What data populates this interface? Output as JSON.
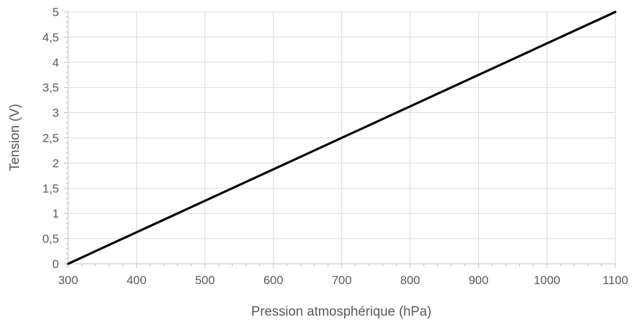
{
  "chart_data": {
    "type": "line",
    "title": "",
    "xlabel": "Pression atmosphérique (hPa)",
    "ylabel": "Tension (V)",
    "xlim": [
      300,
      1100
    ],
    "ylim": [
      0,
      5
    ],
    "x_ticks": [
      300,
      400,
      500,
      600,
      700,
      800,
      900,
      1000,
      1100
    ],
    "x_tick_labels": [
      "300",
      "400",
      "500",
      "600",
      "700",
      "800",
      "900",
      "1000",
      "1100"
    ],
    "y_ticks": [
      0,
      0.5,
      1,
      1.5,
      2,
      2.5,
      3,
      3.5,
      4,
      4.5,
      5
    ],
    "y_tick_labels": [
      "0",
      "0,5",
      "1",
      "1,5",
      "2",
      "2,5",
      "3",
      "3,5",
      "4",
      "4,5",
      "5"
    ],
    "grid": true,
    "legend": "none",
    "series": [
      {
        "x": [
          300,
          1100
        ],
        "y": [
          0,
          5
        ],
        "color": "#000000"
      }
    ],
    "colors": {
      "grid": "#d9d9d9",
      "axis": "#bfbfbf",
      "text": "#595959",
      "line": "#000000"
    }
  }
}
